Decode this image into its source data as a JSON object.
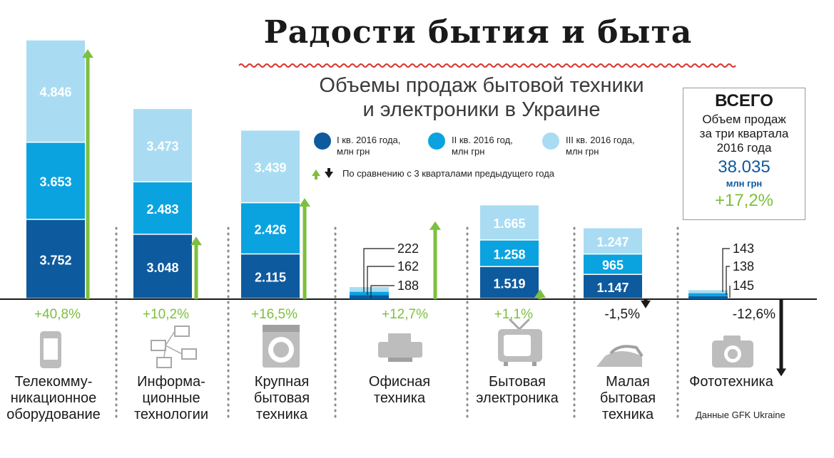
{
  "title": "Радости бытия и быта",
  "subtitle_line1": "Объемы продаж бытовой техники",
  "subtitle_line2": "и электроники в Украине",
  "source": "Данные GFK Ukraine",
  "colors": {
    "q1": "#0e5a9e",
    "q2": "#0aa3e0",
    "q3": "#a9dcf2",
    "up": "#7dbf3e",
    "down": "#1a1a1a",
    "wave": "#d9322b"
  },
  "total": {
    "heading": "ВСЕГО",
    "line1": "Объем продаж",
    "line2": "за три квартала",
    "line3": "2016 года",
    "value": "38.035",
    "unit": "млн грн",
    "change": "+17,2%"
  },
  "chart_data": {
    "type": "bar",
    "stacked": true,
    "unit": "млн грн",
    "categories": [
      "Телекомму-\nникационное\nоборудование",
      "Информа-\nционные\nтехнологии",
      "Крупная\nбытовая\nтехника",
      "Офисная\nтехника",
      "Бытовая\nэлектроника",
      "Малая\nбытовая\nтехника",
      "Фототехника"
    ],
    "icons": [
      "phone-icon",
      "network-icon",
      "washing-machine-icon",
      "printer-icon",
      "tv-icon",
      "iron-icon",
      "camera-icon"
    ],
    "series": [
      {
        "name": "I кв. 2016 года,\nмлн грн",
        "values": [
          3752,
          3048,
          2115,
          188,
          1519,
          1147,
          145
        ],
        "labels": [
          "3.752",
          "3.048",
          "2.115",
          "188",
          "1.519",
          "1.147",
          "145"
        ]
      },
      {
        "name": "II кв. 2016 год,\nмлн грн",
        "values": [
          3653,
          2483,
          2426,
          162,
          1258,
          965,
          138
        ],
        "labels": [
          "3.653",
          "2.483",
          "2.426",
          "162",
          "1.258",
          "965",
          "138"
        ]
      },
      {
        "name": "III кв. 2016 года,\nмлн грн",
        "values": [
          4846,
          3473,
          3439,
          222,
          1665,
          1247,
          143
        ],
        "labels": [
          "4.846",
          "3.473",
          "3.439",
          "222",
          "1.665",
          "1.247",
          "143"
        ]
      }
    ],
    "change": {
      "values": [
        40.8,
        10.2,
        16.5,
        12.7,
        1.1,
        -1.5,
        -12.6
      ],
      "labels": [
        "+40,8%",
        "+10,2%",
        "+16,5%",
        "+12,7%",
        "+1,1%",
        "-1,5%",
        "-12,6%"
      ]
    },
    "change_legend": "По сравнению с 3 кварталами предыдущего года"
  }
}
